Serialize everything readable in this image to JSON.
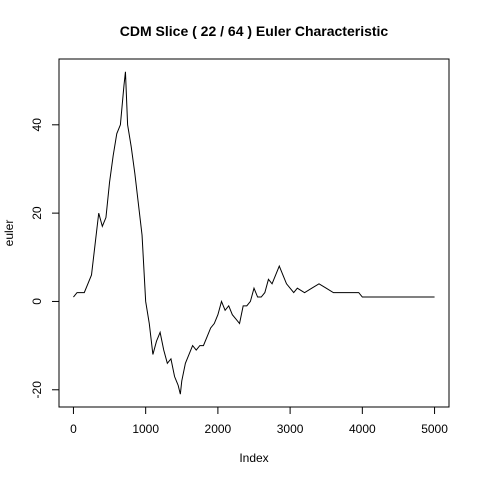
{
  "chart_data": {
    "type": "line",
    "title": "CDM Slice ( 22 / 64 ) Euler Characteristic",
    "x_label": "Index",
    "y_label": "euler",
    "x": [
      0,
      50,
      100,
      150,
      200,
      250,
      300,
      350,
      400,
      450,
      500,
      550,
      600,
      650,
      700,
      720,
      750,
      800,
      850,
      900,
      950,
      1000,
      1050,
      1100,
      1150,
      1200,
      1250,
      1300,
      1350,
      1400,
      1450,
      1480,
      1500,
      1550,
      1600,
      1650,
      1700,
      1750,
      1800,
      1850,
      1900,
      1950,
      2000,
      2050,
      2100,
      2150,
      2200,
      2250,
      2300,
      2350,
      2400,
      2450,
      2500,
      2550,
      2600,
      2650,
      2700,
      2750,
      2800,
      2850,
      2900,
      2950,
      3000,
      3050,
      3100,
      3200,
      3300,
      3400,
      3500,
      3600,
      3950,
      4000,
      5000
    ],
    "series": [
      {
        "name": "euler",
        "color": "#000000",
        "values": [
          1,
          2,
          2,
          2,
          4,
          6,
          13,
          20,
          17,
          19,
          27,
          33,
          38,
          40,
          49,
          52,
          40,
          35,
          29,
          22,
          15,
          0,
          -5,
          -12,
          -9,
          -7,
          -11,
          -14,
          -13,
          -17,
          -19,
          -21,
          -18,
          -14,
          -12,
          -10,
          -11,
          -10,
          -10,
          -8,
          -6,
          -5,
          -3,
          0,
          -2,
          -1,
          -3,
          -4,
          -5,
          -1,
          -1,
          0,
          3,
          1,
          1,
          2,
          5,
          4,
          6,
          8,
          6,
          4,
          3,
          2,
          3,
          2,
          3,
          4,
          3,
          2,
          2,
          1,
          1
        ]
      }
    ],
    "xlim": [
      -200,
      5200
    ],
    "ylim": [
      -23.9,
      54.9
    ],
    "xticks": [
      0,
      1000,
      2000,
      3000,
      4000,
      5000
    ],
    "yticks": [
      -20,
      0,
      20,
      40
    ]
  }
}
